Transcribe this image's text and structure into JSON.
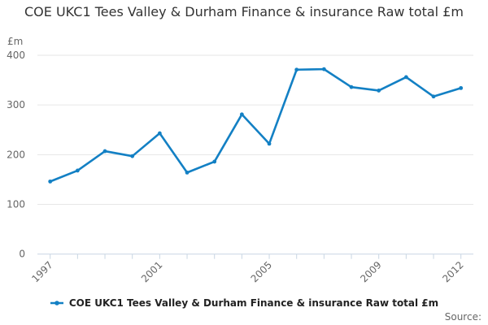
{
  "title": "COE UKC1 Tees Valley & Durham Finance & insurance Raw total £m",
  "y_axis_unit_label": "£m",
  "source_label": "Source:",
  "legend": {
    "items": [
      {
        "label": "COE UKC1 Tees Valley & Durham Finance & insurance Raw total £m",
        "color": "#1380c4"
      }
    ]
  },
  "colors": {
    "line": "#1380c4",
    "grid": "#e6e6e6",
    "axis": "#c9d6e3",
    "axis_text": "#666666",
    "title_text": "#333333",
    "legend_text": "#222222",
    "source_text": "#666666"
  },
  "chart_data": {
    "type": "line",
    "title": "COE UKC1 Tees Valley & Durham Finance & insurance Raw total £m",
    "ylabel": "£m",
    "ylim": [
      0,
      400
    ],
    "y_ticks": [
      0,
      100,
      200,
      300,
      400
    ],
    "x": [
      1997,
      1998,
      1999,
      2000,
      2001,
      2002,
      2003,
      2004,
      2005,
      2006,
      2007,
      2008,
      2009,
      2010,
      2011,
      2012
    ],
    "x_tick_labels": [
      "1997",
      "2001",
      "2005",
      "2009",
      "2012"
    ],
    "x_tick_years": [
      1997,
      2001,
      2005,
      2009,
      2012
    ],
    "grid": true,
    "legend_position": "bottom",
    "series": [
      {
        "name": "COE UKC1 Tees Valley & Durham Finance & insurance Raw total £m",
        "color": "#1380c4",
        "values": [
          146,
          168,
          207,
          197,
          243,
          164,
          186,
          281,
          222,
          371,
          372,
          336,
          329,
          356,
          317,
          334
        ]
      }
    ]
  }
}
